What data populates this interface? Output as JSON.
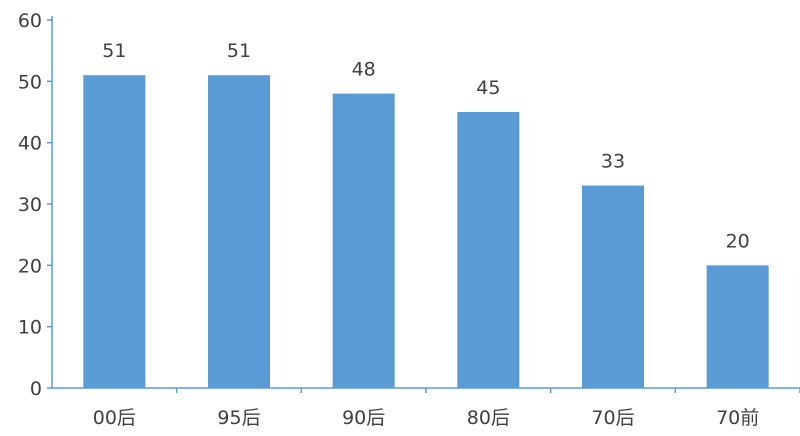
{
  "chart_data": {
    "type": "bar",
    "title": "",
    "xlabel": "",
    "ylabel": "",
    "categories": [
      "00后",
      "95后",
      "90后",
      "80后",
      "70后",
      "70前"
    ],
    "values": [
      51,
      51,
      48,
      45,
      33,
      20
    ],
    "data_labels": [
      "51",
      "51",
      "48",
      "45",
      "33",
      "20"
    ],
    "ylim": [
      0,
      60
    ],
    "yticks": [
      "0",
      "10",
      "20",
      "30",
      "40",
      "50",
      "60"
    ],
    "grid": false,
    "legend": "none",
    "colors": {
      "bar": "#5b9bd5",
      "axis": "#5b9bd5",
      "text": "#404040"
    }
  }
}
